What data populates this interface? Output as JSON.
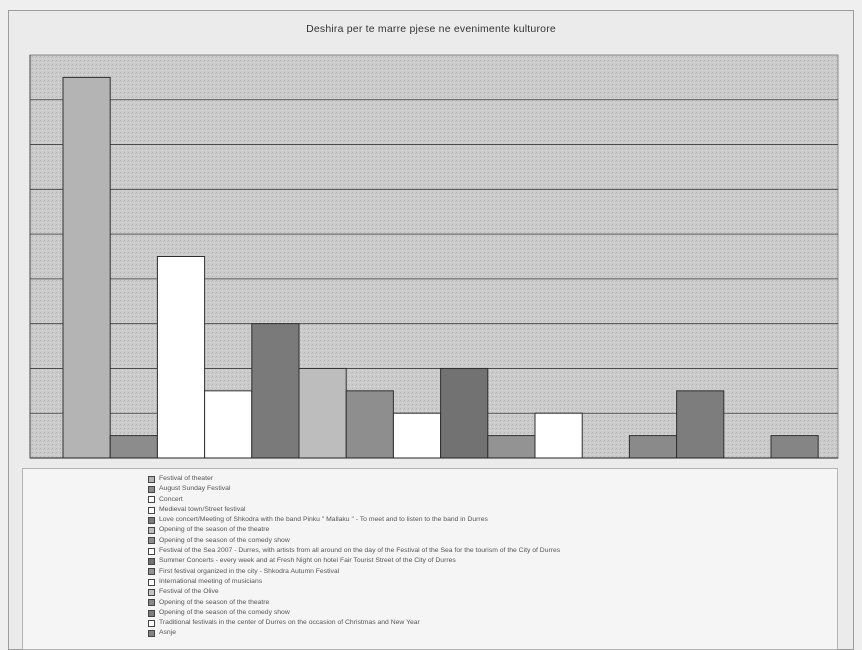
{
  "chart_data": {
    "type": "bar",
    "title": "Deshira per te marre pjese ne evenimente kulturore",
    "xlabel": "",
    "ylabel": "",
    "ylim": [
      0,
      9
    ],
    "grid": true,
    "legend_position": "bottom",
    "series": [
      {
        "name": "Festival of theater",
        "values": [
          8.5
        ],
        "color": "#b4b4b4"
      },
      {
        "name": "August Sunday Festival",
        "values": [
          0.5
        ],
        "color": "#8c8c8c"
      },
      {
        "name": "Concert",
        "values": [
          4.5
        ],
        "color": "#ffffff"
      },
      {
        "name": "Medieval town/Street festival",
        "values": [
          1.5
        ],
        "color": "#ffffff"
      },
      {
        "name": "Love concert/Meeting of Shkodra with the band Pinku \" Mallaku \" - To meet and to listen to the band in Durres",
        "values": [
          3
        ],
        "color": "#7a7a7a"
      },
      {
        "name": "Opening of the season of the theatre",
        "values": [
          2
        ],
        "color": "#bdbdbd"
      },
      {
        "name": "Opening of the season of the comedy show",
        "values": [
          1.5
        ],
        "color": "#8e8e8e"
      },
      {
        "name": "Festival of the Sea 2007 - Durres, with artists from all around on the day of the Festival of the Sea for the tourism of the City of Durres",
        "values": [
          1
        ],
        "color": "#ffffff"
      },
      {
        "name": "Summer Concerts - every week and at Fresh Night on hotel Fair Tourist Street of the City of Durres",
        "values": [
          2
        ],
        "color": "#727272"
      },
      {
        "name": "First festival organized in the city - Shkodra Autumn Festival",
        "values": [
          0.5
        ],
        "color": "#939393"
      },
      {
        "name": "International meeting of musicians",
        "values": [
          1
        ],
        "color": "#ffffff"
      },
      {
        "name": "Festival of the Olive",
        "values": [
          0
        ],
        "color": "#c4c4c4"
      },
      {
        "name": "Opening of the season of the theatre",
        "values": [
          0.5
        ],
        "color": "#8a8a8a"
      },
      {
        "name": "Opening of the season of the comedy show",
        "values": [
          1.5
        ],
        "color": "#7d7d7d"
      },
      {
        "name": "Traditional festivals in the center of Durres on the occasion of Christmas and New Year",
        "values": [
          0
        ],
        "color": "#ffffff"
      },
      {
        "name": "Asnje",
        "values": [
          0.5
        ],
        "color": "#858585"
      }
    ]
  }
}
